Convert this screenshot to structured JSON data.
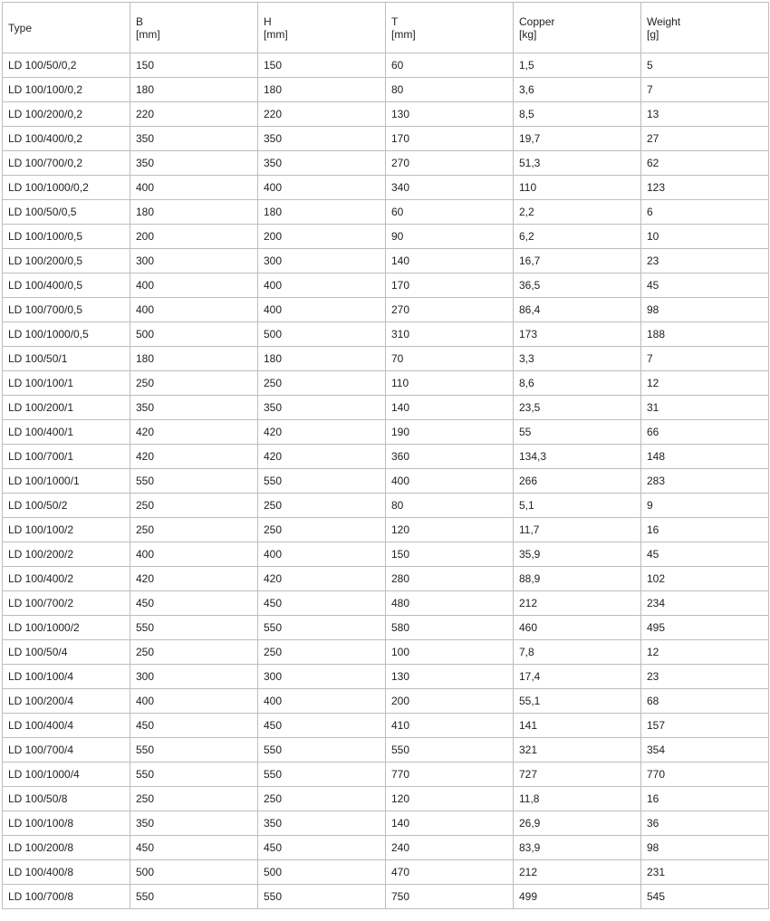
{
  "table": {
    "headers": [
      {
        "label": "Type",
        "unit": ""
      },
      {
        "label": "B",
        "unit": "[mm]"
      },
      {
        "label": "H",
        "unit": "[mm]"
      },
      {
        "label": "T",
        "unit": "[mm]"
      },
      {
        "label": "Copper",
        "unit": "[kg]"
      },
      {
        "label": "Weight",
        "unit": "[g]"
      }
    ],
    "rows": [
      [
        "LD 100/50/0,2",
        "150",
        "150",
        "60",
        "1,5",
        "5"
      ],
      [
        "LD 100/100/0,2",
        "180",
        "180",
        "80",
        "3,6",
        "7"
      ],
      [
        "LD 100/200/0,2",
        "220",
        "220",
        "130",
        "8,5",
        "13"
      ],
      [
        "LD 100/400/0,2",
        "350",
        "350",
        "170",
        "19,7",
        "27"
      ],
      [
        "LD 100/700/0,2",
        "350",
        "350",
        "270",
        "51,3",
        "62"
      ],
      [
        "LD 100/1000/0,2",
        "400",
        "400",
        "340",
        "110",
        "123"
      ],
      [
        "LD 100/50/0,5",
        "180",
        "180",
        "60",
        "2,2",
        "6"
      ],
      [
        "LD 100/100/0,5",
        "200",
        "200",
        "90",
        "6,2",
        "10"
      ],
      [
        "LD 100/200/0,5",
        "300",
        "300",
        "140",
        "16,7",
        "23"
      ],
      [
        "LD 100/400/0,5",
        "400",
        "400",
        "170",
        "36,5",
        "45"
      ],
      [
        "LD 100/700/0,5",
        "400",
        "400",
        "270",
        "86,4",
        "98"
      ],
      [
        "LD 100/1000/0,5",
        "500",
        "500",
        "310",
        "173",
        "188"
      ],
      [
        "LD 100/50/1",
        "180",
        "180",
        "70",
        "3,3",
        "7"
      ],
      [
        "LD 100/100/1",
        "250",
        "250",
        "110",
        "8,6",
        "12"
      ],
      [
        "LD 100/200/1",
        "350",
        "350",
        "140",
        "23,5",
        "31"
      ],
      [
        "LD 100/400/1",
        "420",
        "420",
        "190",
        "55",
        "66"
      ],
      [
        "LD 100/700/1",
        "420",
        "420",
        "360",
        "134,3",
        "148"
      ],
      [
        "LD 100/1000/1",
        "550",
        "550",
        "400",
        "266",
        "283"
      ],
      [
        "LD 100/50/2",
        "250",
        "250",
        "80",
        "5,1",
        "9"
      ],
      [
        "LD 100/100/2",
        "250",
        "250",
        "120",
        "11,7",
        "16"
      ],
      [
        "LD 100/200/2",
        "400",
        "400",
        "150",
        "35,9",
        "45"
      ],
      [
        "LD 100/400/2",
        "420",
        "420",
        "280",
        "88,9",
        "102"
      ],
      [
        "LD 100/700/2",
        "450",
        "450",
        "480",
        "212",
        "234"
      ],
      [
        "LD 100/1000/2",
        "550",
        "550",
        "580",
        "460",
        "495"
      ],
      [
        "LD 100/50/4",
        "250",
        "250",
        "100",
        "7,8",
        "12"
      ],
      [
        "LD 100/100/4",
        "300",
        "300",
        "130",
        "17,4",
        "23"
      ],
      [
        "LD 100/200/4",
        "400",
        "400",
        "200",
        "55,1",
        "68"
      ],
      [
        "LD 100/400/4",
        "450",
        "450",
        "410",
        "141",
        "157"
      ],
      [
        "LD 100/700/4",
        "550",
        "550",
        "550",
        "321",
        "354"
      ],
      [
        "LD 100/1000/4",
        "550",
        "550",
        "770",
        "727",
        "770"
      ],
      [
        "LD 100/50/8",
        "250",
        "250",
        "120",
        "11,8",
        "16"
      ],
      [
        "LD 100/100/8",
        "350",
        "350",
        "140",
        "26,9",
        "36"
      ],
      [
        "LD 100/200/8",
        "450",
        "450",
        "240",
        "83,9",
        "98"
      ],
      [
        "LD 100/400/8",
        "500",
        "500",
        "470",
        "212",
        "231"
      ],
      [
        "LD 100/700/8",
        "550",
        "550",
        "750",
        "499",
        "545"
      ]
    ]
  }
}
